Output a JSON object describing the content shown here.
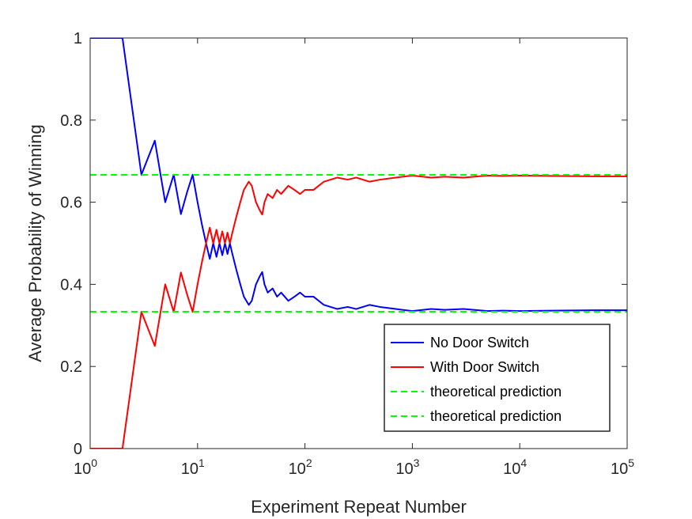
{
  "chart_data": {
    "type": "line",
    "title": "",
    "xlabel": "Experiment Repeat Number",
    "ylabel": "Average Probability of Winning",
    "xscale": "log",
    "xlim": [
      1,
      100000
    ],
    "ylim": [
      0,
      1
    ],
    "x_ticks": [
      {
        "value": 1,
        "base": "10",
        "exp": "0"
      },
      {
        "value": 10,
        "base": "10",
        "exp": "1"
      },
      {
        "value": 100,
        "base": "10",
        "exp": "2"
      },
      {
        "value": 1000,
        "base": "10",
        "exp": "3"
      },
      {
        "value": 10000,
        "base": "10",
        "exp": "4"
      },
      {
        "value": 100000,
        "base": "10",
        "exp": "5"
      }
    ],
    "y_ticks": [
      {
        "value": 0,
        "label": "0"
      },
      {
        "value": 0.2,
        "label": "0.2"
      },
      {
        "value": 0.4,
        "label": "0.4"
      },
      {
        "value": 0.6,
        "label": "0.6"
      },
      {
        "value": 0.8,
        "label": "0.8"
      },
      {
        "value": 1,
        "label": "1"
      }
    ],
    "grid": false,
    "legend_position": "bottom-right",
    "series": [
      {
        "name": "No Door Switch",
        "color": "#0000ff",
        "style": "solid",
        "x": [
          1,
          2,
          3,
          4,
          5,
          6,
          7,
          8,
          9,
          10,
          11,
          12,
          13,
          14,
          15,
          16,
          17,
          18,
          19,
          20,
          21,
          22,
          23,
          25,
          27,
          30,
          32,
          35,
          38,
          40,
          42,
          45,
          50,
          55,
          60,
          70,
          80,
          90,
          100,
          120,
          150,
          200,
          250,
          300,
          400,
          500,
          700,
          1000,
          1500,
          2000,
          3000,
          5000,
          7000,
          10000,
          20000,
          50000,
          100000
        ],
        "y": [
          1,
          1,
          0.667,
          0.75,
          0.6,
          0.667,
          0.571,
          0.625,
          0.667,
          0.6,
          0.545,
          0.5,
          0.462,
          0.5,
          0.467,
          0.5,
          0.471,
          0.5,
          0.474,
          0.5,
          0.476,
          0.455,
          0.435,
          0.4,
          0.37,
          0.35,
          0.36,
          0.4,
          0.42,
          0.43,
          0.4,
          0.38,
          0.39,
          0.37,
          0.38,
          0.36,
          0.37,
          0.38,
          0.37,
          0.37,
          0.35,
          0.34,
          0.345,
          0.34,
          0.35,
          0.345,
          0.34,
          0.335,
          0.34,
          0.338,
          0.34,
          0.335,
          0.336,
          0.335,
          0.336,
          0.337,
          0.337
        ]
      },
      {
        "name": "With Door Switch",
        "color": "#ff0000",
        "style": "solid",
        "x": [
          1,
          2,
          3,
          4,
          5,
          6,
          7,
          8,
          9,
          10,
          11,
          12,
          13,
          14,
          15,
          16,
          17,
          18,
          19,
          20,
          21,
          22,
          23,
          25,
          27,
          30,
          32,
          35,
          38,
          40,
          42,
          45,
          50,
          55,
          60,
          70,
          80,
          90,
          100,
          120,
          150,
          200,
          250,
          300,
          400,
          500,
          700,
          1000,
          1500,
          2000,
          3000,
          5000,
          7000,
          10000,
          20000,
          50000,
          100000
        ],
        "y": [
          0,
          0,
          0.333,
          0.25,
          0.4,
          0.333,
          0.429,
          0.375,
          0.333,
          0.4,
          0.455,
          0.5,
          0.538,
          0.5,
          0.533,
          0.5,
          0.529,
          0.5,
          0.526,
          0.5,
          0.524,
          0.545,
          0.565,
          0.6,
          0.63,
          0.65,
          0.64,
          0.6,
          0.58,
          0.57,
          0.6,
          0.62,
          0.61,
          0.63,
          0.62,
          0.64,
          0.63,
          0.62,
          0.63,
          0.63,
          0.65,
          0.66,
          0.655,
          0.66,
          0.65,
          0.655,
          0.66,
          0.665,
          0.66,
          0.662,
          0.66,
          0.665,
          0.664,
          0.665,
          0.664,
          0.663,
          0.663
        ]
      },
      {
        "name": "theoretical prediction",
        "color": "#00ff00",
        "style": "dashed",
        "x": [
          1,
          100000
        ],
        "y": [
          0.6667,
          0.6667
        ]
      },
      {
        "name": "theoretical prediction",
        "color": "#00ff00",
        "style": "dashed",
        "x": [
          1,
          100000
        ],
        "y": [
          0.3333,
          0.3333
        ]
      }
    ]
  }
}
